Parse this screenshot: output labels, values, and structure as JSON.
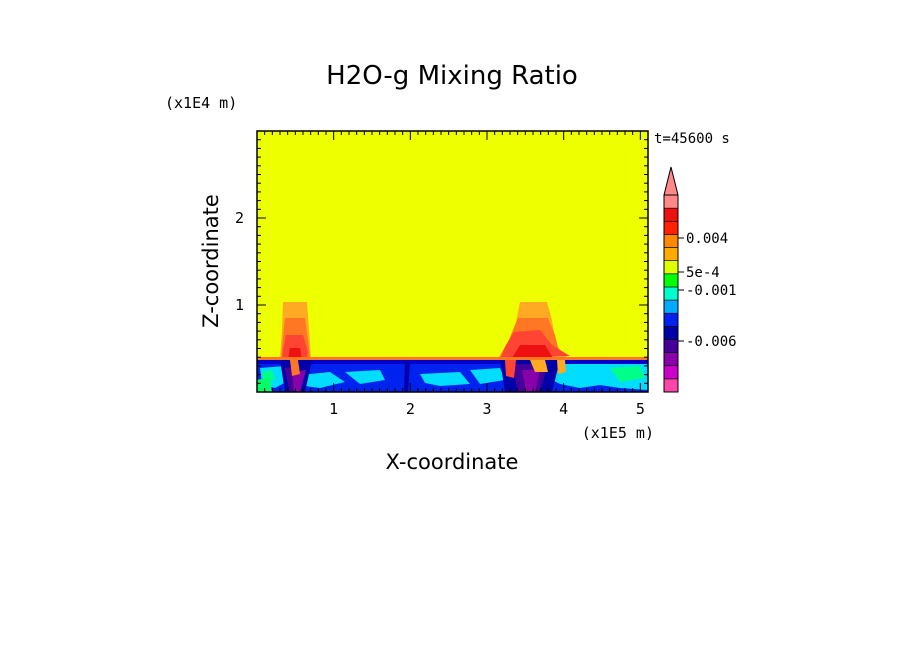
{
  "chart_data": {
    "type": "heatmap",
    "title": "H2O-g Mixing Ratio",
    "xlabel": "X-coordinate",
    "ylabel": "Z-coordinate",
    "x_scale_label": "(x1E5 m)",
    "y_scale_label": "(x1E4 m)",
    "time_label": "t=45600 s",
    "xlim": [
      0,
      5.1
    ],
    "ylim": [
      0,
      3.0
    ],
    "x_ticks": [
      "1",
      "2",
      "3",
      "4",
      "5"
    ],
    "y_ticks": [
      "1",
      "2"
    ],
    "colorbar": {
      "labels": [
        "0.004",
        "5e-4",
        "-0.001",
        "-0.006"
      ],
      "colors": [
        "#ff44aa",
        "#cc00cc",
        "#8800aa",
        "#440099",
        "#0000aa",
        "#0022ee",
        "#00aaff",
        "#00ffcc",
        "#00ff00",
        "#ddff00",
        "#ffaa00",
        "#ff8800",
        "#ff2200",
        "#ee1111",
        "#ff8888"
      ]
    },
    "background_color": "#eeff00"
  }
}
